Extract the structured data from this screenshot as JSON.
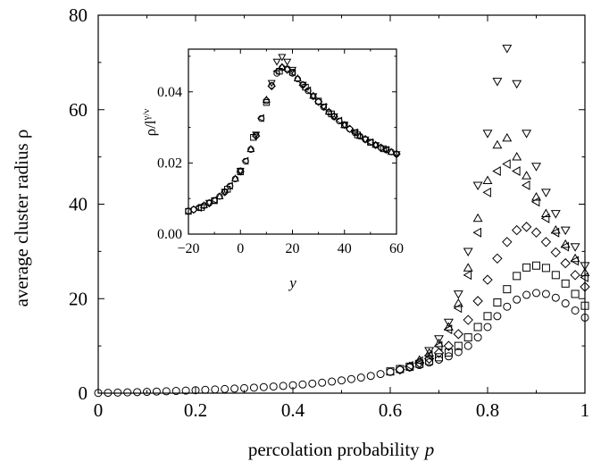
{
  "chart_data": [
    {
      "type": "scatter",
      "title": "",
      "xlabel": "percolation probability",
      "xlabel_var": "p",
      "ylabel": "average cluster radius ρ",
      "xlim": [
        0,
        1
      ],
      "ylim": [
        0,
        80
      ],
      "xticks": [
        "0",
        "0.2",
        "0.4",
        "0.6",
        "0.8",
        "1"
      ],
      "yticks": [
        "0",
        "20",
        "40",
        "60",
        "80"
      ],
      "grid": false,
      "legend": "none",
      "series": [
        {
          "marker": "circle",
          "x": [
            0.0,
            0.02,
            0.04,
            0.06,
            0.08,
            0.1,
            0.12,
            0.14,
            0.16,
            0.18,
            0.2,
            0.22,
            0.24,
            0.26,
            0.28,
            0.3,
            0.32,
            0.34,
            0.36,
            0.38,
            0.4,
            0.42,
            0.44,
            0.46,
            0.48,
            0.5,
            0.52,
            0.54,
            0.56,
            0.58,
            0.6,
            0.62,
            0.64,
            0.66,
            0.68,
            0.7,
            0.72,
            0.74,
            0.76,
            0.78,
            0.8,
            0.82,
            0.84,
            0.86,
            0.88,
            0.9,
            0.92,
            0.94,
            0.96,
            0.98,
            1.0
          ],
          "y": [
            0.05,
            0.08,
            0.12,
            0.17,
            0.22,
            0.28,
            0.34,
            0.4,
            0.47,
            0.54,
            0.62,
            0.7,
            0.78,
            0.87,
            0.96,
            1.06,
            1.16,
            1.28,
            1.4,
            1.53,
            1.68,
            1.84,
            2.02,
            2.22,
            2.45,
            2.7,
            2.98,
            3.3,
            3.65,
            4.05,
            4.5,
            4.95,
            5.45,
            5.95,
            6.5,
            7.1,
            7.8,
            8.7,
            10.0,
            11.8,
            14.0,
            16.3,
            18.3,
            19.8,
            20.8,
            21.2,
            21.0,
            20.2,
            19.0,
            17.5,
            16.0
          ]
        },
        {
          "marker": "square",
          "x": [
            0.6,
            0.62,
            0.64,
            0.66,
            0.68,
            0.7,
            0.72,
            0.74,
            0.76,
            0.78,
            0.8,
            0.82,
            0.84,
            0.86,
            0.88,
            0.9,
            0.92,
            0.94,
            0.96,
            0.98,
            1.0
          ],
          "y": [
            4.6,
            5.1,
            5.6,
            6.2,
            6.8,
            7.6,
            8.6,
            10.0,
            11.8,
            14.0,
            16.3,
            19.2,
            22.0,
            24.8,
            26.6,
            27.0,
            26.5,
            25.0,
            23.2,
            21.0,
            18.5
          ]
        },
        {
          "marker": "diamond",
          "x": [
            0.62,
            0.64,
            0.66,
            0.68,
            0.7,
            0.72,
            0.74,
            0.76,
            0.78,
            0.8,
            0.82,
            0.84,
            0.86,
            0.88,
            0.9,
            0.92,
            0.94,
            0.96,
            0.98,
            1.0
          ],
          "y": [
            5.0,
            5.6,
            6.4,
            7.3,
            8.5,
            10.0,
            12.5,
            15.5,
            19.5,
            24.0,
            28.5,
            32.0,
            34.5,
            35.2,
            34.0,
            32.0,
            29.8,
            27.5,
            25.0,
            22.5
          ]
        },
        {
          "marker": "triangle-left",
          "x": [
            0.64,
            0.66,
            0.68,
            0.7,
            0.72,
            0.74,
            0.76,
            0.78,
            0.8,
            0.82,
            0.84,
            0.86,
            0.88,
            0.9,
            0.92,
            0.94,
            0.96,
            0.98,
            1.0
          ],
          "y": [
            5.8,
            6.8,
            8.0,
            10.0,
            13.5,
            18.0,
            25.0,
            34.0,
            42.5,
            47.0,
            48.5,
            47.0,
            44.0,
            40.5,
            37.0,
            34.0,
            31.0,
            28.0,
            24.5
          ]
        },
        {
          "marker": "triangle-up",
          "x": [
            0.66,
            0.68,
            0.7,
            0.72,
            0.74,
            0.76,
            0.78,
            0.8,
            0.82,
            0.84,
            0.86,
            0.88,
            0.9,
            0.92,
            0.94,
            0.96,
            0.98,
            1.0
          ],
          "y": [
            7.0,
            8.5,
            10.5,
            14.0,
            19.0,
            26.5,
            37.0,
            45.0,
            52.5,
            54.0,
            50.0,
            46.0,
            41.5,
            38.0,
            34.5,
            31.5,
            28.5,
            25.5
          ]
        },
        {
          "marker": "triangle-down",
          "x": [
            0.68,
            0.7,
            0.72,
            0.74,
            0.76,
            0.78,
            0.8,
            0.82,
            0.84,
            0.86,
            0.88,
            0.9,
            0.92,
            0.94,
            0.96,
            0.98,
            1.0
          ],
          "y": [
            9.0,
            11.5,
            15.0,
            21.0,
            30.0,
            44.0,
            55.0,
            66.0,
            73.0,
            65.5,
            55.0,
            48.0,
            42.5,
            38.0,
            34.5,
            31.0,
            27.0
          ]
        }
      ]
    },
    {
      "type": "scatter",
      "title": "",
      "xlabel": "y",
      "ylabel_base": "ρ/l",
      "ylabel_exp": "γ/ν",
      "xlim": [
        -20,
        60
      ],
      "ylim": [
        0,
        0.052
      ],
      "xticks": [
        "−20",
        "0",
        "20",
        "40",
        "60"
      ],
      "yticks": [
        "0.00",
        "0.02",
        "0.04"
      ],
      "grid": false,
      "legend": "none",
      "series": [
        {
          "marker": "circle",
          "x": [
            -20,
            -18,
            -16,
            -14,
            -12,
            -10,
            -8,
            -6,
            -4,
            -2,
            0,
            2,
            4,
            6,
            8,
            10,
            12,
            14,
            16,
            18,
            20,
            22,
            24,
            26,
            28,
            30,
            32,
            34,
            36,
            38,
            40,
            42,
            44,
            46,
            48,
            50,
            52,
            54,
            56,
            58,
            60
          ],
          "y": [
            0.0065,
            0.0069,
            0.0074,
            0.008,
            0.0087,
            0.0095,
            0.0106,
            0.0119,
            0.0135,
            0.0155,
            0.0178,
            0.0205,
            0.0238,
            0.0278,
            0.0325,
            0.0375,
            0.0418,
            0.0452,
            0.0468,
            0.0465,
            0.0452,
            0.0436,
            0.042,
            0.0403,
            0.0387,
            0.0372,
            0.0357,
            0.0343,
            0.033,
            0.0318,
            0.0306,
            0.0295,
            0.0285,
            0.0275,
            0.0266,
            0.0258,
            0.025,
            0.0243,
            0.0237,
            0.0231,
            0.0225
          ]
        },
        {
          "marker": "square",
          "x": [
            -20,
            -15,
            -10,
            -5,
            0,
            5,
            10,
            15,
            20,
            25,
            30,
            35,
            40,
            45,
            50,
            55
          ],
          "y": [
            0.0064,
            0.0075,
            0.0094,
            0.0126,
            0.0175,
            0.0272,
            0.037,
            0.0458,
            0.0455,
            0.0413,
            0.0374,
            0.0338,
            0.0307,
            0.0279,
            0.0258,
            0.024
          ]
        },
        {
          "marker": "diamond",
          "x": [
            -18,
            -12,
            -6,
            0,
            6,
            12,
            18,
            24,
            30,
            36,
            42,
            48,
            54,
            60
          ],
          "y": [
            0.0069,
            0.0087,
            0.0118,
            0.0176,
            0.0276,
            0.0416,
            0.0462,
            0.0419,
            0.0372,
            0.0331,
            0.0296,
            0.0267,
            0.0243,
            0.0225
          ]
        },
        {
          "marker": "triangle-left",
          "x": [
            -16,
            -10,
            -4,
            2,
            8,
            14,
            20,
            26,
            32,
            38,
            44,
            50,
            56
          ],
          "y": [
            0.0074,
            0.0096,
            0.0136,
            0.0206,
            0.0326,
            0.0458,
            0.0455,
            0.0404,
            0.0358,
            0.0319,
            0.0286,
            0.0258,
            0.0237
          ]
        },
        {
          "marker": "triangle-up",
          "x": [
            -14,
            -8,
            -2,
            4,
            10,
            16,
            22,
            28,
            34,
            40,
            46,
            52,
            58
          ],
          "y": [
            0.0081,
            0.0106,
            0.0156,
            0.0239,
            0.0378,
            0.047,
            0.0438,
            0.0389,
            0.0344,
            0.0307,
            0.0276,
            0.0251,
            0.0231
          ]
        },
        {
          "marker": "triangle-down",
          "x": [
            -12,
            -6,
            0,
            6,
            12,
            14,
            16,
            18,
            20,
            24,
            28,
            32,
            36,
            40,
            44,
            48,
            52,
            56,
            60
          ],
          "y": [
            0.0088,
            0.0119,
            0.0178,
            0.028,
            0.0425,
            0.0485,
            0.0498,
            0.0485,
            0.0462,
            0.042,
            0.0388,
            0.0358,
            0.0331,
            0.0307,
            0.0286,
            0.0266,
            0.025,
            0.0237,
            0.0225
          ]
        }
      ]
    }
  ]
}
